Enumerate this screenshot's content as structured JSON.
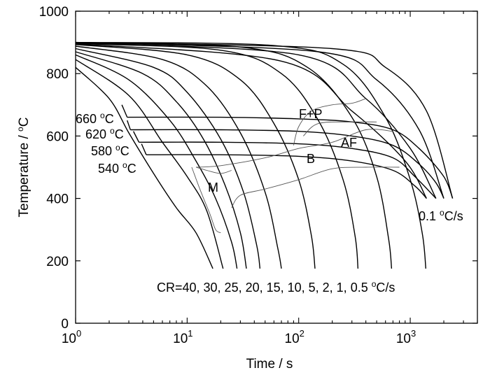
{
  "chart_data": {
    "type": "line",
    "xlabel": "Time / s",
    "ylabel_main": "Temperature / ",
    "ylabel_sup": "o",
    "ylabel_unit": "C",
    "x_scale": "log",
    "xlim": [
      1,
      4000
    ],
    "ylim": [
      0,
      1000
    ],
    "x_ticks": [
      {
        "value": 1,
        "base": "10",
        "exp": "0"
      },
      {
        "value": 10,
        "base": "10",
        "exp": "1"
      },
      {
        "value": 100,
        "base": "10",
        "exp": "2"
      },
      {
        "value": 1000,
        "base": "10",
        "exp": "3"
      }
    ],
    "y_ticks": [
      0,
      200,
      400,
      600,
      800,
      1000
    ],
    "grid": false,
    "cooling_rates_label": {
      "prefix": "CR=40, 30, 25, 20, 15, 10, 5, 2, 1, 0.5 ",
      "sup": "o",
      "suffix": "C/s"
    },
    "slow_rate_label": {
      "prefix": "0.1 ",
      "sup": "o",
      "suffix": "C/s"
    },
    "region_labels": [
      "F+P",
      "AF",
      "B",
      "M"
    ],
    "isothermal_labels": [
      {
        "value": "660 ",
        "sup": "o",
        "unit": "C"
      },
      {
        "value": "620 ",
        "sup": "o",
        "unit": "C"
      },
      {
        "value": "580 ",
        "sup": "o",
        "unit": "C"
      },
      {
        "value": "540 ",
        "sup": "o",
        "unit": "C"
      }
    ],
    "cooling_curves": [
      {
        "rate": 40,
        "points": [
          [
            1,
            820
          ],
          [
            2,
            720
          ],
          [
            3,
            610
          ],
          [
            5,
            480
          ],
          [
            8,
            370
          ],
          [
            12,
            290
          ],
          [
            17,
            175
          ]
        ]
      },
      {
        "rate": 30,
        "points": [
          [
            1,
            845
          ],
          [
            3,
            730
          ],
          [
            6,
            580
          ],
          [
            10,
            470
          ],
          [
            15,
            360
          ],
          [
            21,
            175
          ]
        ]
      },
      {
        "rate": 25,
        "points": [
          [
            1,
            860
          ],
          [
            3,
            780
          ],
          [
            7,
            650
          ],
          [
            12,
            520
          ],
          [
            18,
            400
          ],
          [
            25,
            260
          ],
          [
            28,
            175
          ]
        ]
      },
      {
        "rate": 20,
        "points": [
          [
            1,
            870
          ],
          [
            4,
            800
          ],
          [
            8,
            710
          ],
          [
            14,
            590
          ],
          [
            22,
            440
          ],
          [
            30,
            290
          ],
          [
            34,
            175
          ]
        ]
      },
      {
        "rate": 15,
        "points": [
          [
            1,
            880
          ],
          [
            5,
            820
          ],
          [
            10,
            740
          ],
          [
            20,
            590
          ],
          [
            32,
            420
          ],
          [
            42,
            250
          ],
          [
            45,
            175
          ]
        ]
      },
      {
        "rate": 10,
        "points": [
          [
            1,
            888
          ],
          [
            6,
            845
          ],
          [
            15,
            760
          ],
          [
            30,
            610
          ],
          [
            50,
            420
          ],
          [
            65,
            240
          ],
          [
            70,
            175
          ]
        ]
      },
      {
        "rate": 5,
        "points": [
          [
            1,
            893
          ],
          [
            10,
            860
          ],
          [
            30,
            780
          ],
          [
            60,
            640
          ],
          [
            100,
            460
          ],
          [
            130,
            280
          ],
          [
            140,
            175
          ]
        ]
      },
      {
        "rate": 2,
        "points": [
          [
            1,
            896
          ],
          [
            20,
            875
          ],
          [
            70,
            800
          ],
          [
            150,
            650
          ],
          [
            250,
            460
          ],
          [
            320,
            280
          ],
          [
            340,
            175
          ]
        ]
      },
      {
        "rate": 1,
        "points": [
          [
            1,
            898
          ],
          [
            30,
            885
          ],
          [
            120,
            820
          ],
          [
            300,
            660
          ],
          [
            500,
            470
          ],
          [
            640,
            270
          ],
          [
            680,
            175
          ]
        ]
      },
      {
        "rate": 0.5,
        "points": [
          [
            1,
            900
          ],
          [
            60,
            890
          ],
          [
            250,
            830
          ],
          [
            600,
            660
          ],
          [
            1000,
            460
          ],
          [
            1280,
            290
          ],
          [
            1380,
            175
          ]
        ]
      }
    ],
    "slow_curves": [
      {
        "points": [
          [
            1,
            900
          ],
          [
            200,
            880
          ],
          [
            600,
            820
          ],
          [
            1400,
            680
          ],
          [
            2400,
            400
          ]
        ]
      },
      {
        "points": [
          [
            1,
            899
          ],
          [
            150,
            870
          ],
          [
            500,
            780
          ],
          [
            1200,
            620
          ],
          [
            2000,
            400
          ]
        ]
      },
      {
        "points": [
          [
            1,
            897
          ],
          [
            100,
            860
          ],
          [
            400,
            720
          ],
          [
            1000,
            560
          ],
          [
            1700,
            400
          ]
        ]
      },
      {
        "points": [
          [
            1,
            895
          ],
          [
            70,
            840
          ],
          [
            300,
            680
          ],
          [
            900,
            520
          ],
          [
            1400,
            400
          ]
        ]
      }
    ],
    "isotherm_curves": [
      {
        "temp": 660,
        "points": [
          [
            2.9,
            660
          ],
          [
            20,
            660
          ],
          [
            100,
            655
          ],
          [
            300,
            645
          ],
          [
            700,
            620
          ],
          [
            1200,
            560
          ],
          [
            2000,
            470
          ],
          [
            2400,
            400
          ]
        ]
      },
      {
        "temp": 620,
        "points": [
          [
            3.1,
            620
          ],
          [
            20,
            620
          ],
          [
            100,
            615
          ],
          [
            300,
            600
          ],
          [
            700,
            570
          ],
          [
            1200,
            510
          ],
          [
            1700,
            450
          ],
          [
            2000,
            400
          ]
        ]
      },
      {
        "temp": 580,
        "points": [
          [
            3.7,
            580
          ],
          [
            20,
            580
          ],
          [
            100,
            575
          ],
          [
            300,
            560
          ],
          [
            700,
            530
          ],
          [
            1100,
            470
          ],
          [
            1700,
            400
          ]
        ]
      },
      {
        "temp": 540,
        "points": [
          [
            4.3,
            540
          ],
          [
            20,
            540
          ],
          [
            100,
            535
          ],
          [
            300,
            520
          ],
          [
            700,
            490
          ],
          [
            1100,
            440
          ],
          [
            1400,
            400
          ]
        ]
      }
    ],
    "phase_boundaries": [
      {
        "name": "fp-start",
        "points": [
          [
            90,
            570
          ],
          [
            100,
            630
          ],
          [
            130,
            680
          ],
          [
            200,
            700
          ],
          [
            300,
            705
          ],
          [
            400,
            720
          ]
        ]
      },
      {
        "name": "fp-finish",
        "points": [
          [
            110,
            600
          ],
          [
            150,
            640
          ],
          [
            300,
            645
          ],
          [
            500,
            645
          ]
        ]
      },
      {
        "name": "bainite-start",
        "points": [
          [
            12,
            500
          ],
          [
            20,
            505
          ],
          [
            50,
            530
          ],
          [
            100,
            560
          ],
          [
            200,
            580
          ],
          [
            400,
            620
          ],
          [
            700,
            615
          ]
        ]
      },
      {
        "name": "bainite-finish",
        "points": [
          [
            25,
            370
          ],
          [
            30,
            410
          ],
          [
            50,
            430
          ],
          [
            100,
            460
          ],
          [
            200,
            495
          ],
          [
            400,
            500
          ],
          [
            800,
            500
          ]
        ]
      },
      {
        "name": "martensite-start",
        "points": [
          [
            11,
            500
          ],
          [
            13,
            430
          ],
          [
            16,
            350
          ],
          [
            18,
            300
          ],
          [
            20,
            290
          ]
        ]
      },
      {
        "name": "martensite-upper",
        "points": [
          [
            12,
            500
          ],
          [
            15,
            490
          ],
          [
            20,
            480
          ],
          [
            25,
            490
          ]
        ]
      }
    ]
  }
}
